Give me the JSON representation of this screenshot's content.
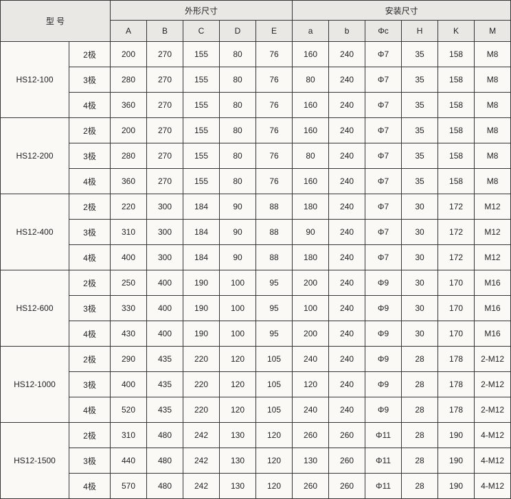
{
  "header": {
    "model": "型 号",
    "group1": "外形尺寸",
    "group2": "安装尺寸",
    "cols": [
      "A",
      "B",
      "C",
      "D",
      "E",
      "a",
      "b",
      "Φc",
      "H",
      "K",
      "M"
    ]
  },
  "models": [
    {
      "name": "HS12-100",
      "rows": [
        {
          "pole": "2极",
          "v": [
            "200",
            "270",
            "155",
            "80",
            "76",
            "160",
            "240",
            "Φ7",
            "35",
            "158",
            "M8"
          ]
        },
        {
          "pole": "3极",
          "v": [
            "280",
            "270",
            "155",
            "80",
            "76",
            "80",
            "240",
            "Φ7",
            "35",
            "158",
            "M8"
          ]
        },
        {
          "pole": "4极",
          "v": [
            "360",
            "270",
            "155",
            "80",
            "76",
            "160",
            "240",
            "Φ7",
            "35",
            "158",
            "M8"
          ]
        }
      ]
    },
    {
      "name": "HS12-200",
      "rows": [
        {
          "pole": "2极",
          "v": [
            "200",
            "270",
            "155",
            "80",
            "76",
            "160",
            "240",
            "Φ7",
            "35",
            "158",
            "M8"
          ]
        },
        {
          "pole": "3极",
          "v": [
            "280",
            "270",
            "155",
            "80",
            "76",
            "80",
            "240",
            "Φ7",
            "35",
            "158",
            "M8"
          ]
        },
        {
          "pole": "4极",
          "v": [
            "360",
            "270",
            "155",
            "80",
            "76",
            "160",
            "240",
            "Φ7",
            "35",
            "158",
            "M8"
          ]
        }
      ]
    },
    {
      "name": "HS12-400",
      "rows": [
        {
          "pole": "2极",
          "v": [
            "220",
            "300",
            "184",
            "90",
            "88",
            "180",
            "240",
            "Φ7",
            "30",
            "172",
            "M12"
          ]
        },
        {
          "pole": "3极",
          "v": [
            "310",
            "300",
            "184",
            "90",
            "88",
            "90",
            "240",
            "Φ7",
            "30",
            "172",
            "M12"
          ]
        },
        {
          "pole": "4极",
          "v": [
            "400",
            "300",
            "184",
            "90",
            "88",
            "180",
            "240",
            "Φ7",
            "30",
            "172",
            "M12"
          ]
        }
      ]
    },
    {
      "name": "HS12-600",
      "rows": [
        {
          "pole": "2极",
          "v": [
            "250",
            "400",
            "190",
            "100",
            "95",
            "200",
            "240",
            "Φ9",
            "30",
            "170",
            "M16"
          ]
        },
        {
          "pole": "3极",
          "v": [
            "330",
            "400",
            "190",
            "100",
            "95",
            "100",
            "240",
            "Φ9",
            "30",
            "170",
            "M16"
          ]
        },
        {
          "pole": "4极",
          "v": [
            "430",
            "400",
            "190",
            "100",
            "95",
            "200",
            "240",
            "Φ9",
            "30",
            "170",
            "M16"
          ]
        }
      ]
    },
    {
      "name": "HS12-1000",
      "rows": [
        {
          "pole": "2极",
          "v": [
            "290",
            "435",
            "220",
            "120",
            "105",
            "240",
            "240",
            "Φ9",
            "28",
            "178",
            "2-M12"
          ]
        },
        {
          "pole": "3极",
          "v": [
            "400",
            "435",
            "220",
            "120",
            "105",
            "120",
            "240",
            "Φ9",
            "28",
            "178",
            "2-M12"
          ]
        },
        {
          "pole": "4极",
          "v": [
            "520",
            "435",
            "220",
            "120",
            "105",
            "240",
            "240",
            "Φ9",
            "28",
            "178",
            "2-M12"
          ]
        }
      ]
    },
    {
      "name": "HS12-1500",
      "rows": [
        {
          "pole": "2极",
          "v": [
            "310",
            "480",
            "242",
            "130",
            "120",
            "260",
            "260",
            "Φ11",
            "28",
            "190",
            "4-M12"
          ]
        },
        {
          "pole": "3极",
          "v": [
            "440",
            "480",
            "242",
            "130",
            "120",
            "130",
            "260",
            "Φ11",
            "28",
            "190",
            "4-M12"
          ]
        },
        {
          "pole": "4极",
          "v": [
            "570",
            "480",
            "242",
            "130",
            "120",
            "260",
            "260",
            "Φ11",
            "28",
            "190",
            "4-M12"
          ]
        }
      ]
    }
  ]
}
